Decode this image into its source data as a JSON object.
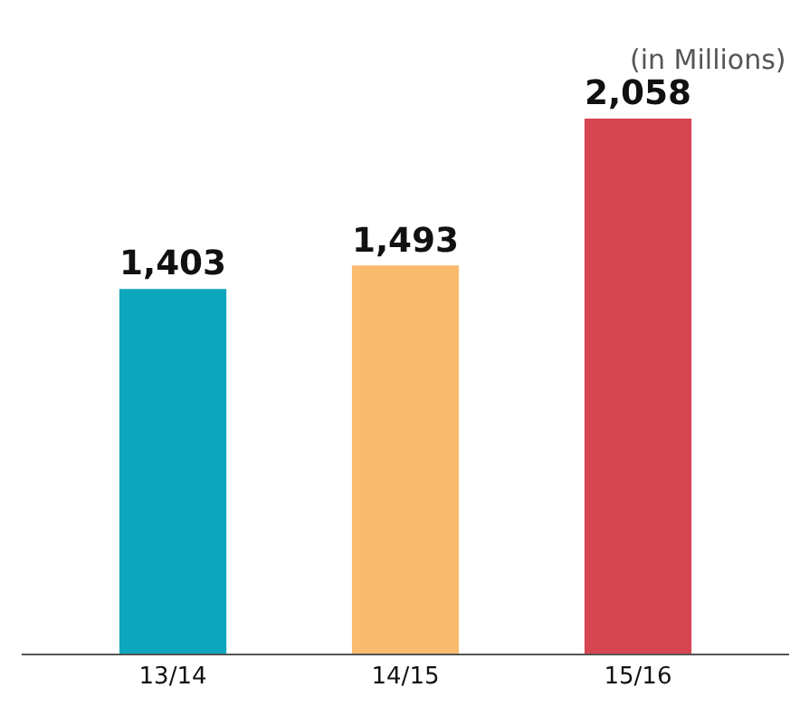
{
  "chart_data": {
    "type": "bar",
    "categories": [
      "13/14",
      "14/15",
      "15/16"
    ],
    "values": [
      1403,
      1493,
      2058
    ],
    "colors": [
      "#0ca7bc",
      "#fbbb6e",
      "#d64550"
    ],
    "value_labels": [
      "1,403",
      "1,493",
      "2,058"
    ],
    "annotations": [
      "(in Millions)"
    ]
  }
}
